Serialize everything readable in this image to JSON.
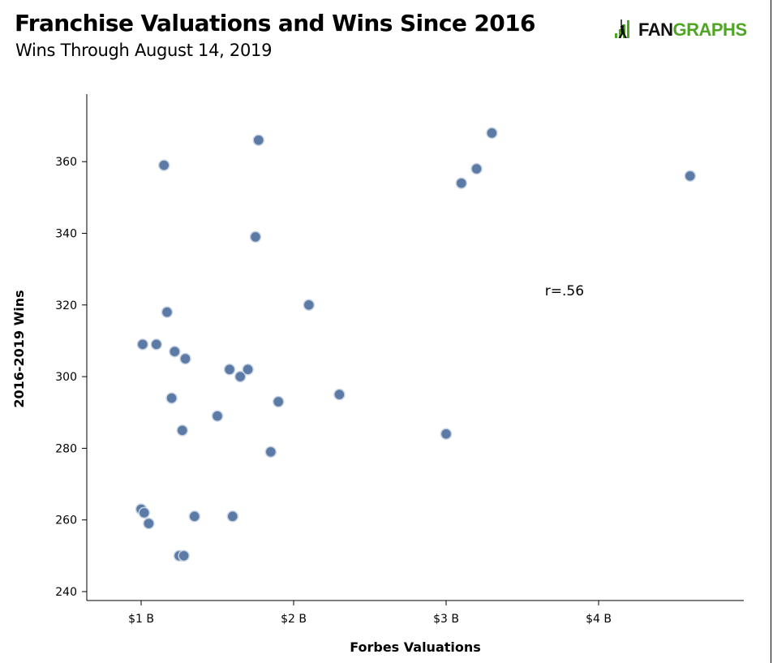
{
  "header": {
    "title": "Franchise Valuations and Wins Since 2016",
    "subtitle": "Wins Through August 14, 2019"
  },
  "logo": {
    "text_dark": "FAN",
    "text_green": "GRAPHS",
    "brand_green": "#4fa624"
  },
  "colors": {
    "point_fill": "#5b7aa6",
    "point_stroke": "#c9d3e2",
    "axis": "#000000"
  },
  "chart_data": {
    "type": "scatter",
    "title": "Franchise Valuations and Wins Since 2016",
    "subtitle": "Wins Through August 14, 2019",
    "xlabel": "Forbes Valuations",
    "ylabel": "2016-2019 Wins",
    "x_unit": "billions of dollars",
    "xlim": [
      0.65,
      4.95
    ],
    "ylim": [
      238,
      379
    ],
    "x_ticks": [
      1,
      2,
      3,
      4
    ],
    "x_tick_labels": [
      "$1 B",
      "$2 B",
      "$3 B",
      "$4 B"
    ],
    "y_ticks": [
      240,
      260,
      280,
      300,
      320,
      340,
      360
    ],
    "y_tick_labels": [
      "240",
      "260",
      "280",
      "300",
      "320",
      "340",
      "360"
    ],
    "grid": false,
    "annotation": {
      "text": "r=.56",
      "x": 3.6,
      "y": 324
    },
    "points": [
      {
        "x": 1.15,
        "y": 359
      },
      {
        "x": 1.77,
        "y": 366
      },
      {
        "x": 1.75,
        "y": 339
      },
      {
        "x": 3.3,
        "y": 368
      },
      {
        "x": 3.2,
        "y": 358
      },
      {
        "x": 3.1,
        "y": 354
      },
      {
        "x": 4.6,
        "y": 356
      },
      {
        "x": 2.1,
        "y": 320
      },
      {
        "x": 1.17,
        "y": 318
      },
      {
        "x": 1.01,
        "y": 309
      },
      {
        "x": 1.1,
        "y": 309
      },
      {
        "x": 1.22,
        "y": 307
      },
      {
        "x": 1.29,
        "y": 305
      },
      {
        "x": 1.58,
        "y": 302
      },
      {
        "x": 1.7,
        "y": 302
      },
      {
        "x": 1.65,
        "y": 300
      },
      {
        "x": 1.2,
        "y": 294
      },
      {
        "x": 2.3,
        "y": 295
      },
      {
        "x": 1.9,
        "y": 293
      },
      {
        "x": 1.5,
        "y": 289
      },
      {
        "x": 1.27,
        "y": 285
      },
      {
        "x": 3.0,
        "y": 284
      },
      {
        "x": 1.85,
        "y": 279
      },
      {
        "x": 1.0,
        "y": 263
      },
      {
        "x": 1.02,
        "y": 262
      },
      {
        "x": 1.05,
        "y": 259
      },
      {
        "x": 1.35,
        "y": 261
      },
      {
        "x": 1.6,
        "y": 261
      },
      {
        "x": 1.25,
        "y": 250
      },
      {
        "x": 1.28,
        "y": 250
      }
    ]
  }
}
